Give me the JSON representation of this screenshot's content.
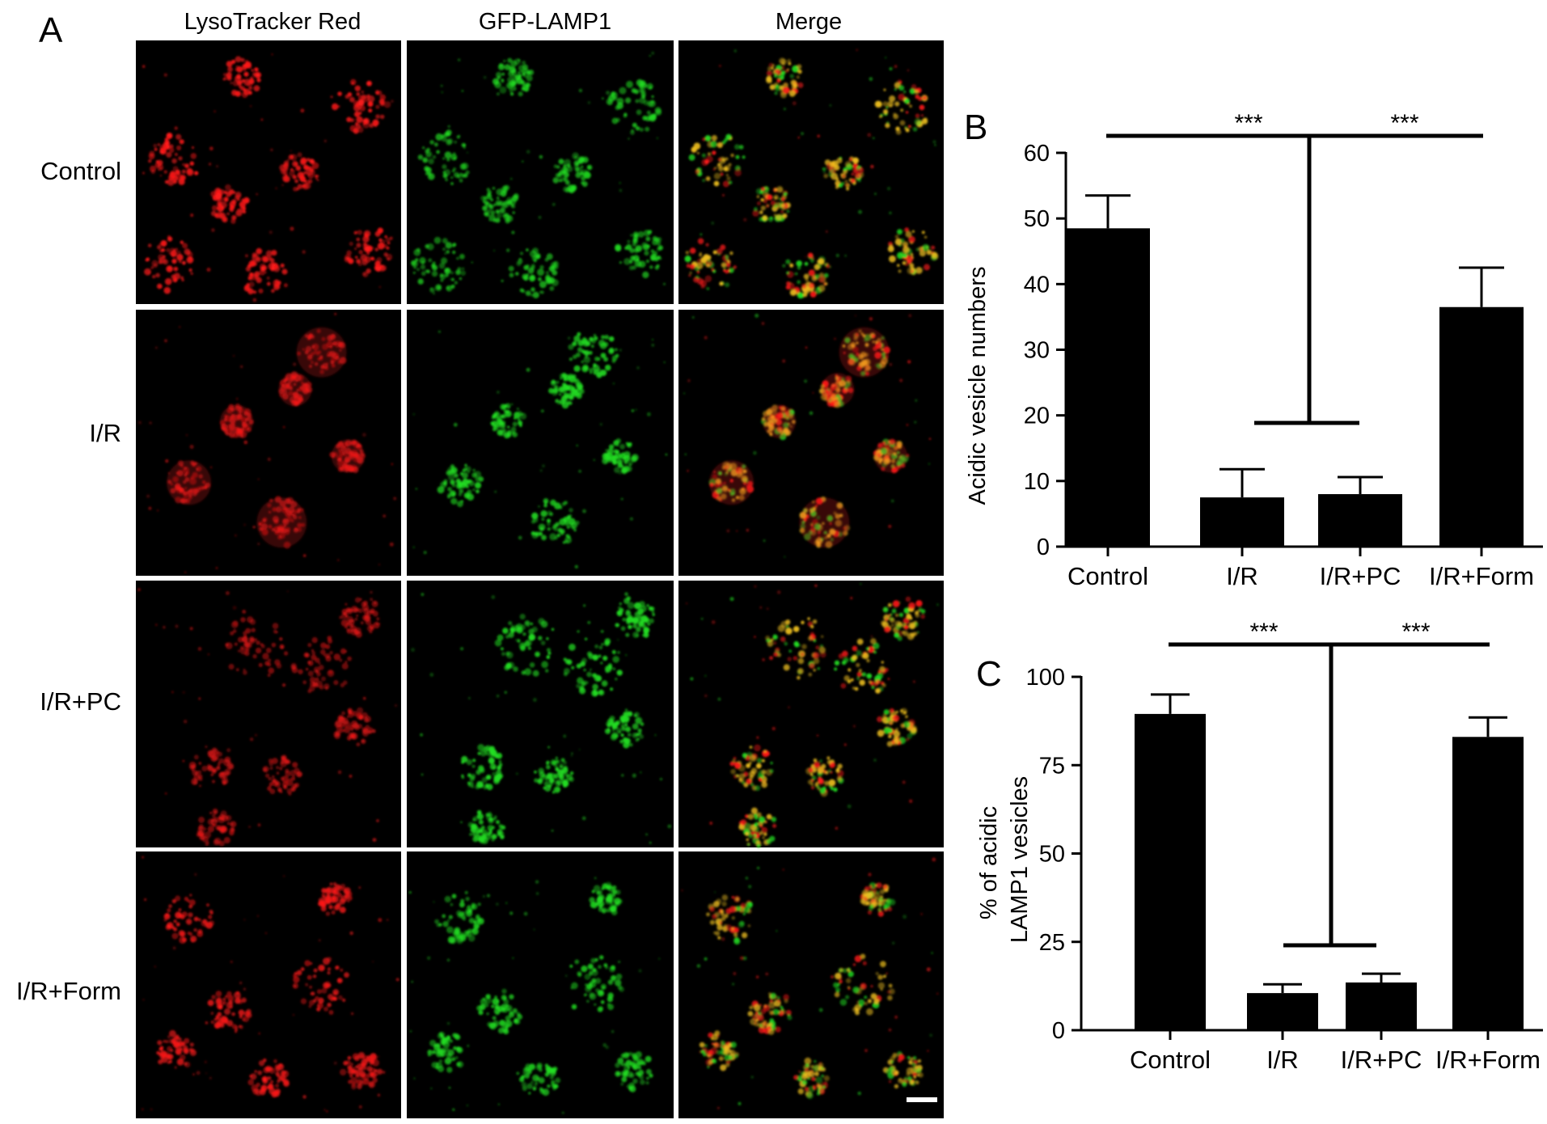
{
  "panel_a": {
    "label": "A",
    "columns": [
      "LysoTracker Red",
      "GFP-LAMP1",
      "Merge"
    ],
    "rows": [
      "Control",
      "I/R",
      "I/R+PC",
      "I/R+Form"
    ]
  },
  "colors": {
    "lysotracker": "#ff1a1a",
    "lamp1": "#22e022",
    "merge_overlap": "#f0c020",
    "bar_fill": "#000000",
    "background": "#ffffff",
    "micrograph_bg": "#000000"
  },
  "chart_data": [
    {
      "panel": "B",
      "type": "bar",
      "ylabel": "Acidic vesicle numbers",
      "xlabel": "",
      "categories": [
        "Control",
        "I/R",
        "I/R+PC",
        "I/R+Form"
      ],
      "values": [
        48.5,
        7.5,
        8,
        36.5
      ],
      "errors": [
        5,
        4.3,
        2.6,
        6
      ],
      "ylim": [
        0,
        60
      ],
      "yticks": [
        0,
        10,
        20,
        30,
        40,
        50,
        60
      ],
      "significance": [
        "***",
        "***"
      ]
    },
    {
      "panel": "C",
      "type": "bar",
      "ylabel": [
        "% of acidic",
        "LAMP1 vesicles"
      ],
      "xlabel": "",
      "categories": [
        "Control",
        "I/R",
        "I/R+PC",
        "I/R+Form"
      ],
      "values": [
        89.5,
        10.5,
        13.5,
        83
      ],
      "errors": [
        5.5,
        2.5,
        2.5,
        5.5
      ],
      "ylim": [
        0,
        100
      ],
      "yticks": [
        0,
        25,
        50,
        75,
        100
      ],
      "significance": [
        "***",
        "***"
      ]
    }
  ]
}
